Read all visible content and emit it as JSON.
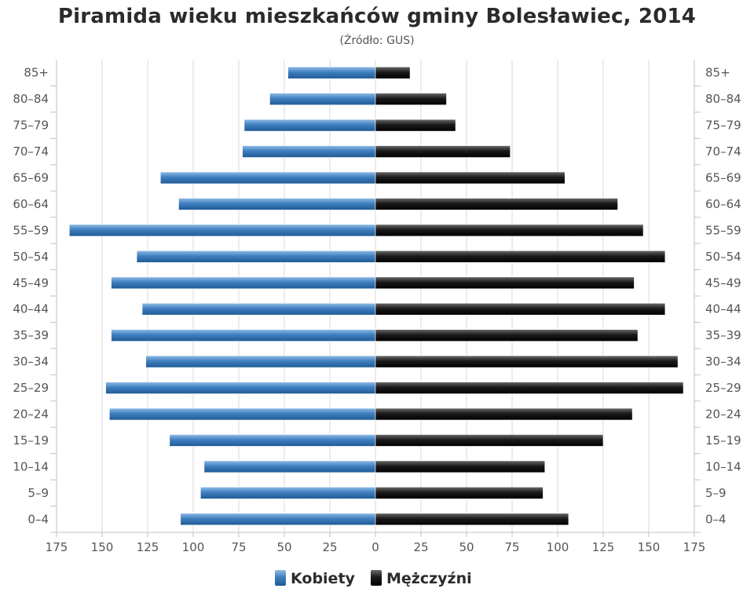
{
  "header": {
    "title": "Piramida wieku mieszkańców gminy Bolesławiec, 2014",
    "subtitle": "(Źródło: GUS)"
  },
  "colors": {
    "female": "#3f7fbf",
    "male": "#1a1a1a",
    "grid": "#d9d9d9",
    "axis": "#c0c0c0"
  },
  "chart_data": {
    "type": "bar",
    "orientation": "horizontal",
    "title": "Piramida wieku mieszkańców gminy Bolesławiec, 2014",
    "subtitle": "(Źródło: GUS)",
    "categories": [
      "0–4",
      "5–9",
      "10–14",
      "15–19",
      "20–24",
      "25–29",
      "30–34",
      "35–39",
      "40–44",
      "45–49",
      "50–54",
      "55–59",
      "60–64",
      "65–69",
      "70–74",
      "75–79",
      "80–84",
      "85+"
    ],
    "series": [
      {
        "name": "Kobiety",
        "side": "left",
        "values": [
          107,
          96,
          94,
          113,
          146,
          148,
          126,
          145,
          128,
          145,
          131,
          168,
          108,
          118,
          73,
          72,
          58,
          48
        ]
      },
      {
        "name": "Mężczyźni",
        "side": "right",
        "values": [
          106,
          92,
          93,
          125,
          141,
          169,
          166,
          144,
          159,
          142,
          159,
          147,
          133,
          104,
          74,
          44,
          39,
          19
        ]
      }
    ],
    "x_ticks": [
      "175",
      "150",
      "125",
      "100",
      "75",
      "50",
      "25",
      "0",
      "25",
      "50",
      "75",
      "100",
      "125",
      "150",
      "175"
    ],
    "xlim": [
      -175,
      175
    ],
    "grid": true,
    "legend_position": "bottom-center"
  },
  "legend": {
    "items": [
      {
        "label": "Kobiety"
      },
      {
        "label": "Mężczyźni"
      }
    ]
  }
}
